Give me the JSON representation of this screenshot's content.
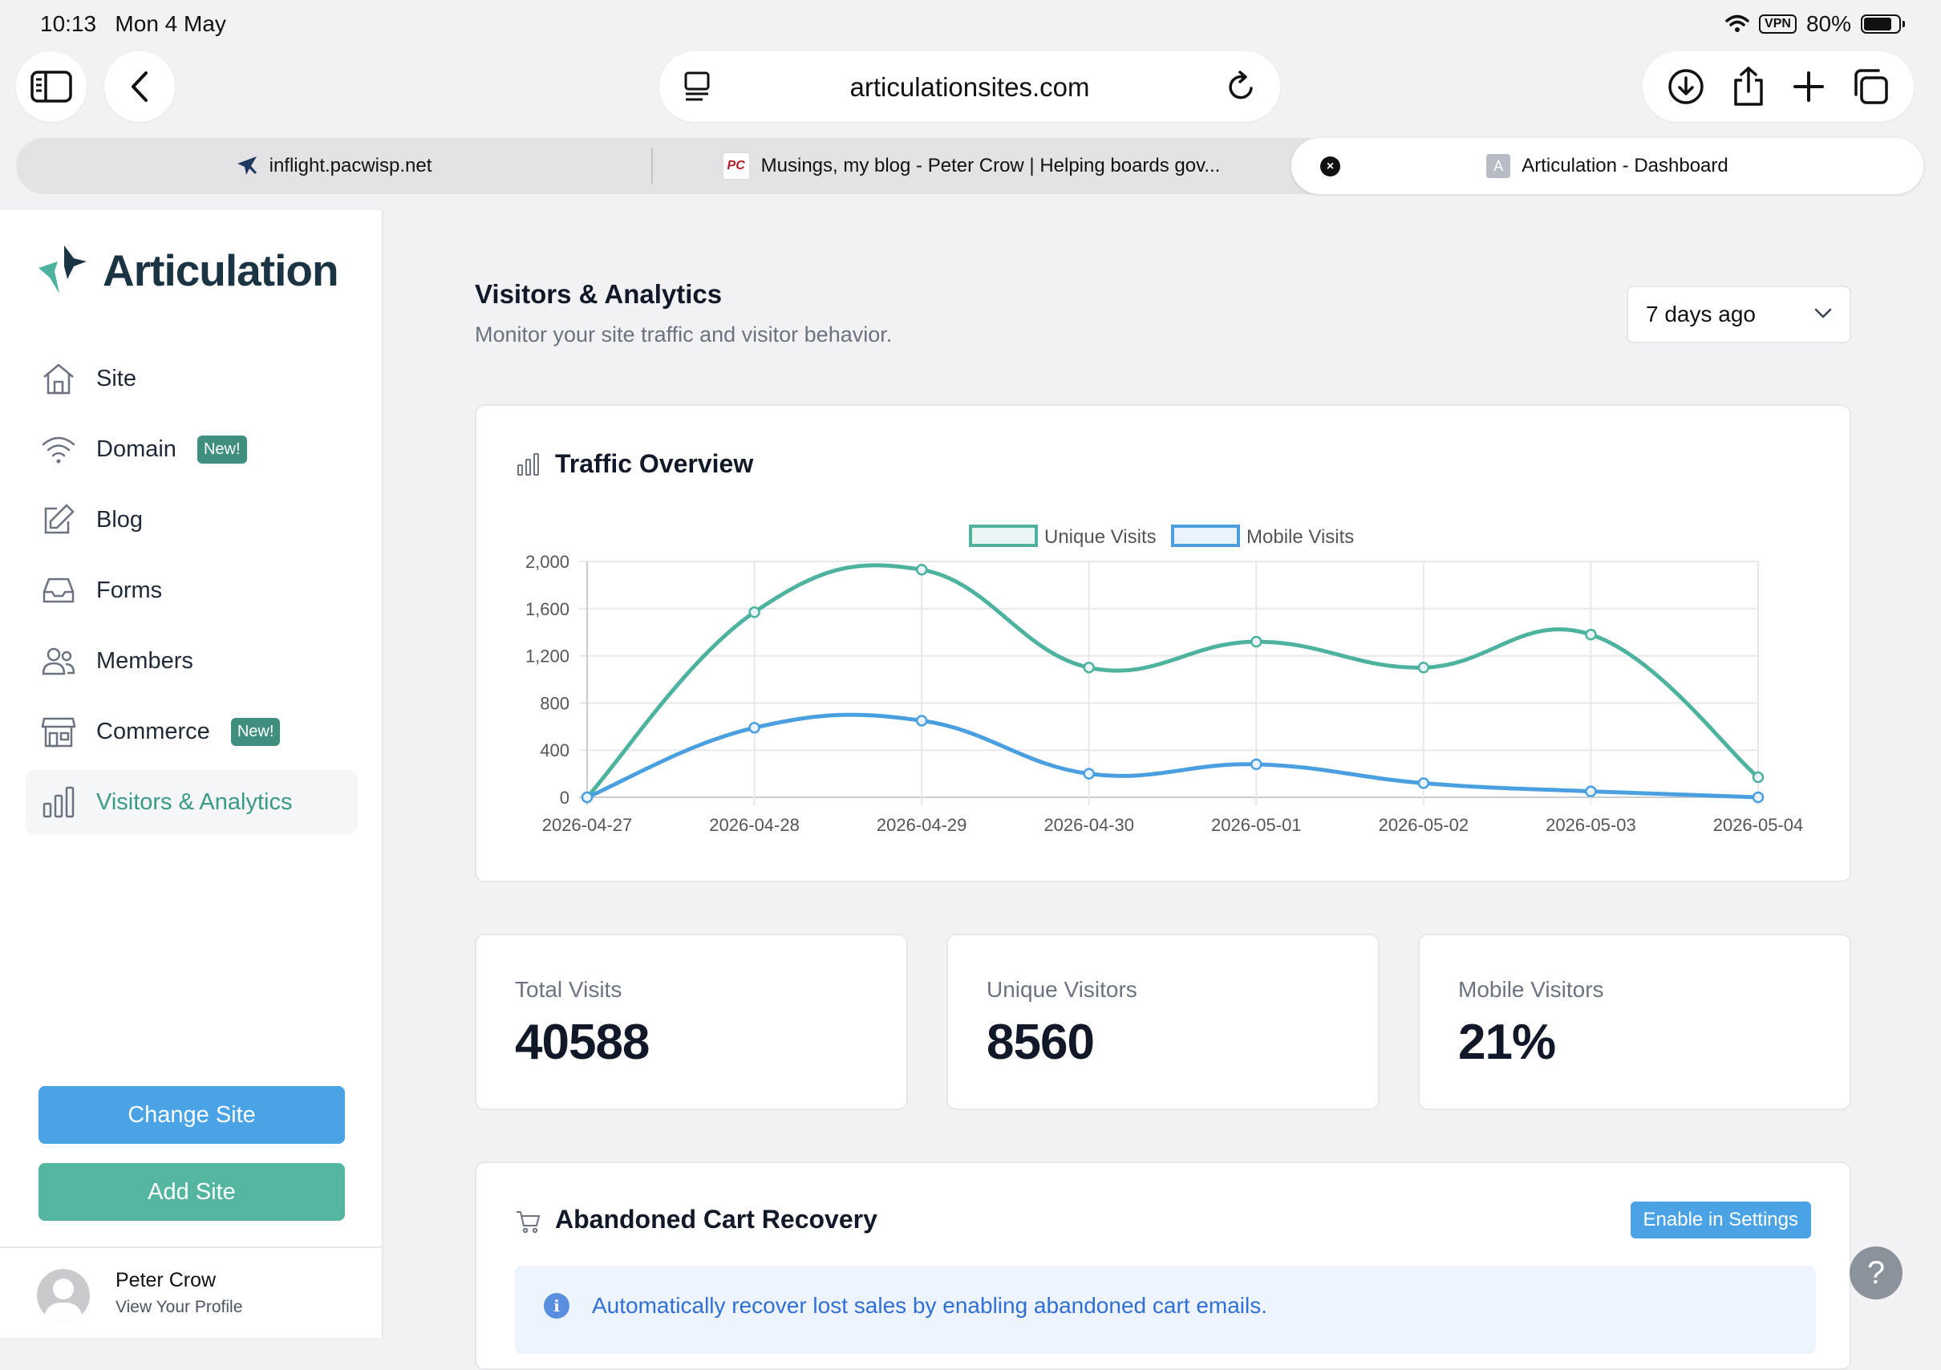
{
  "status": {
    "time": "10:13",
    "date": "Mon 4 May",
    "vpn": "VPN",
    "battery": "80%",
    "battery_fraction": 0.8
  },
  "browser": {
    "url": "articulationsites.com",
    "tabs": [
      {
        "label": "inflight.pacwisp.net"
      },
      {
        "label": "Musings, my blog - Peter Crow | Helping boards gov...",
        "icon_text": "PC"
      },
      {
        "label": "Articulation - Dashboard",
        "icon_text": "A"
      }
    ]
  },
  "sidebar": {
    "logo": "Articulation",
    "items": [
      {
        "label": "Site",
        "icon": "home-icon"
      },
      {
        "label": "Domain",
        "icon": "wifi-icon",
        "badge": "New!"
      },
      {
        "label": "Blog",
        "icon": "edit-icon"
      },
      {
        "label": "Forms",
        "icon": "inbox-icon"
      },
      {
        "label": "Members",
        "icon": "users-icon"
      },
      {
        "label": "Commerce",
        "icon": "store-icon",
        "badge": "New!"
      },
      {
        "label": "Visitors & Analytics",
        "icon": "bar-chart-icon",
        "active": true
      }
    ],
    "change_site": "Change Site",
    "add_site": "Add Site",
    "profile": {
      "name": "Peter Crow",
      "sub": "View Your Profile"
    }
  },
  "main": {
    "title": "Visitors & Analytics",
    "subtitle": "Monitor your site traffic and visitor behavior.",
    "range": "7 days ago",
    "traffic_title": "Traffic Overview",
    "stats": [
      {
        "label": "Total Visits",
        "value": "40588"
      },
      {
        "label": "Unique Visitors",
        "value": "8560"
      },
      {
        "label": "Mobile Visitors",
        "value": "21%"
      }
    ],
    "cart": {
      "title": "Abandoned Cart Recovery",
      "button": "Enable in Settings",
      "info": "Automatically recover lost sales by enabling abandoned cart emails.",
      "info_icon": "i"
    },
    "help": "?"
  },
  "chart_data": {
    "type": "line",
    "x": [
      "2026-04-27",
      "2026-04-28",
      "2026-04-29",
      "2026-04-30",
      "2026-05-01",
      "2026-05-02",
      "2026-05-03",
      "2026-05-04"
    ],
    "series": [
      {
        "name": "Unique Visits",
        "values": [
          0,
          1570,
          1930,
          1100,
          1320,
          1100,
          1380,
          170
        ],
        "color": "#4db39f"
      },
      {
        "name": "Mobile Visits",
        "values": [
          0,
          590,
          650,
          200,
          280,
          120,
          50,
          0
        ],
        "color": "#4a9fe0"
      }
    ],
    "ylim": [
      0,
      2000
    ],
    "yticks": [
      "0",
      "400",
      "800",
      "1,200",
      "1,600",
      "2,000"
    ],
    "ytick_values": [
      0,
      400,
      800,
      1200,
      1600,
      2000
    ],
    "grid": true,
    "legend": "top-center"
  }
}
